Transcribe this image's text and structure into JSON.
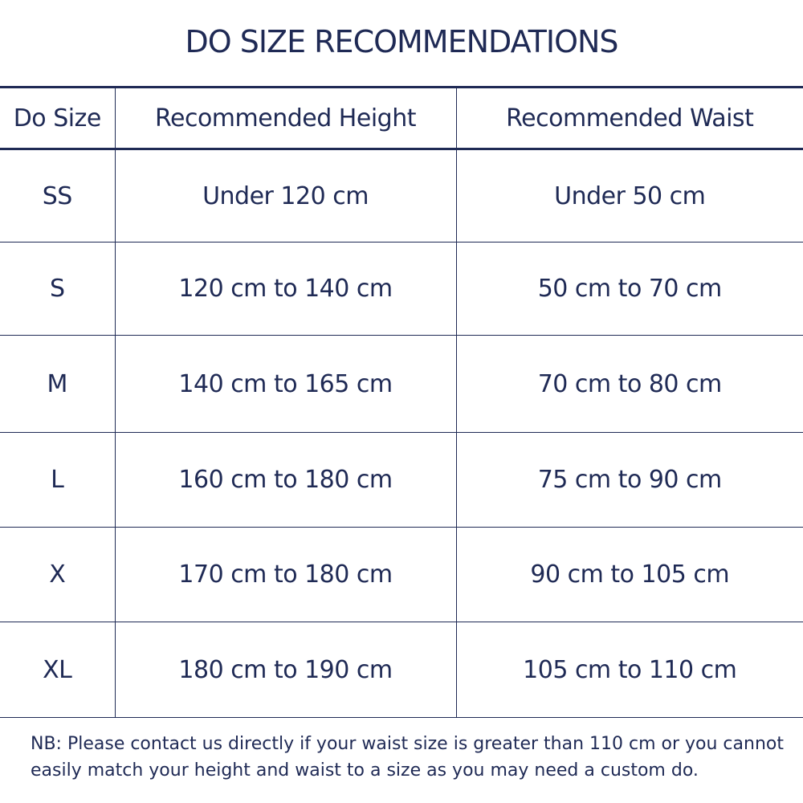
{
  "title": "DO SIZE RECOMMENDATIONS",
  "table": {
    "headers": [
      "Do Size",
      "Recommended Height",
      "Recommended Waist"
    ],
    "rows": [
      [
        "SS",
        "Under 120 cm",
        "Under 50 cm"
      ],
      [
        "S",
        "120 cm to 140 cm",
        "50 cm to 70 cm"
      ],
      [
        "M",
        "140 cm to 165 cm",
        "70 cm to 80 cm"
      ],
      [
        "L",
        "160 cm to 180 cm",
        "75 cm to 90 cm"
      ],
      [
        "X",
        "170 cm to 180 cm",
        "90 cm to 105 cm"
      ],
      [
        "XL",
        "180 cm to 190 cm",
        "105 cm to 110 cm"
      ]
    ]
  },
  "note": "NB: Please contact us directly if your waist size is greater than 110 cm or you cannot easily match your height and waist to a size as you may need a custom do.",
  "colors": {
    "text": "#1f2a55",
    "background": "#ffffff"
  }
}
